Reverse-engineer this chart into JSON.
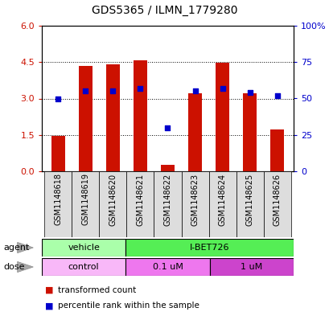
{
  "title": "GDS5365 / ILMN_1779280",
  "samples": [
    "GSM1148618",
    "GSM1148619",
    "GSM1148620",
    "GSM1148621",
    "GSM1148622",
    "GSM1148623",
    "GSM1148624",
    "GSM1148625",
    "GSM1148626"
  ],
  "transformed_count": [
    1.45,
    4.35,
    4.42,
    4.57,
    0.27,
    3.22,
    4.47,
    3.22,
    1.72
  ],
  "percentile_rank": [
    50,
    55,
    55,
    57,
    30,
    55,
    57,
    54,
    52
  ],
  "left_ylim": [
    0,
    6
  ],
  "right_ylim": [
    0,
    100
  ],
  "left_yticks": [
    0,
    1.5,
    3,
    4.5,
    6
  ],
  "right_yticks": [
    0,
    25,
    50,
    75,
    100
  ],
  "right_yticklabels": [
    "0",
    "25",
    "50",
    "75",
    "100%"
  ],
  "bar_color": "#cc1100",
  "dot_color": "#0000cc",
  "agent_labels": [
    {
      "text": "vehicle",
      "start": 0,
      "end": 3,
      "color": "#aaffaa"
    },
    {
      "text": "I-BET726",
      "start": 3,
      "end": 9,
      "color": "#55ee55"
    }
  ],
  "dose_labels": [
    {
      "text": "control",
      "start": 0,
      "end": 3,
      "color": "#f8b8f8"
    },
    {
      "text": "0.1 uM",
      "start": 3,
      "end": 6,
      "color": "#ee77ee"
    },
    {
      "text": "1 uM",
      "start": 6,
      "end": 9,
      "color": "#cc44cc"
    }
  ],
  "legend_red_label": "transformed count",
  "legend_blue_label": "percentile rank within the sample",
  "background_color": "#ffffff",
  "tick_label_color_left": "#cc1100",
  "tick_label_color_right": "#0000cc",
  "xtick_bg_color": "#dddddd"
}
